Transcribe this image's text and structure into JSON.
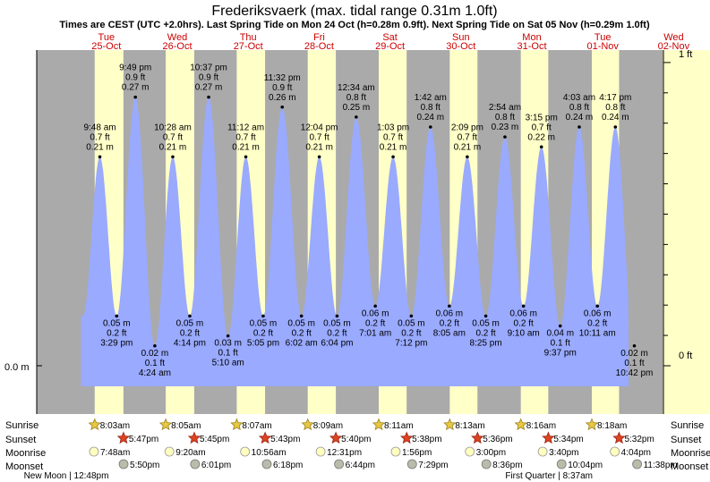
{
  "chart_data": {
    "type": "area",
    "title": "Frederiksvaerk (max. tidal range 0.31m 1.0ft)",
    "subtitle": "Times are CEST (UTC +2.0hrs). Last Spring Tide on Mon 24 Oct (h=0.28m 0.9ft). Next Spring Tide on Sat 05 Nov (h=0.29m 1.0ft)",
    "xlabel": "",
    "ylabel": "",
    "x_unit": "hours since 24-Oct 00:00",
    "ylim_m": [
      -0.017,
      0.326
    ],
    "xlim_h": [
      24,
      216
    ],
    "left_axis_label": "0.0 m",
    "right_axis_labels": [
      "1 ft",
      "0 ft"
    ],
    "colors": {
      "day": "#ffffc8",
      "night": "#aaaaaa",
      "tide": "#99aaff",
      "header_red": "#cc0000",
      "axis_band": "#ffffc8"
    },
    "days": [
      {
        "name": "Tue",
        "date": "25-Oct",
        "center_h": 36
      },
      {
        "name": "Wed",
        "date": "26-Oct",
        "center_h": 60
      },
      {
        "name": "Thu",
        "date": "27-Oct",
        "center_h": 84
      },
      {
        "name": "Fri",
        "date": "28-Oct",
        "center_h": 108
      },
      {
        "name": "Sat",
        "date": "29-Oct",
        "center_h": 132
      },
      {
        "name": "Sun",
        "date": "30-Oct",
        "center_h": 156
      },
      {
        "name": "Mon",
        "date": "31-Oct",
        "center_h": 180
      },
      {
        "name": "Tue",
        "date": "01-Nov",
        "center_h": 204
      },
      {
        "name": "Wed",
        "date": "02-Nov",
        "center_h": 228
      }
    ],
    "daylight": [
      {
        "sunrise_h": 32.05,
        "sunset_h": 41.78
      },
      {
        "sunrise_h": 56.08,
        "sunset_h": 65.75
      },
      {
        "sunrise_h": 80.12,
        "sunset_h": 89.72
      },
      {
        "sunrise_h": 104.15,
        "sunset_h": 113.67
      },
      {
        "sunrise_h": 128.18,
        "sunset_h": 137.63
      },
      {
        "sunrise_h": 152.22,
        "sunset_h": 161.6
      },
      {
        "sunrise_h": 176.27,
        "sunset_h": 185.57
      },
      {
        "sunrise_h": 200.3,
        "sunset_h": 209.53
      }
    ],
    "tides": [
      {
        "t_h": 33.8,
        "m": 0.21,
        "time": "9:48 am",
        "m_label": "0.21 m",
        "ft_label": "0.7 ft",
        "type": "high"
      },
      {
        "t_h": 39.48,
        "m": 0.05,
        "time": "3:29 pm",
        "m_label": "0.05 m",
        "ft_label": "0.2 ft",
        "type": "low"
      },
      {
        "t_h": 45.82,
        "m": 0.27,
        "time": "9:49 pm",
        "m_label": "0.27 m",
        "ft_label": "0.9 ft",
        "type": "high"
      },
      {
        "t_h": 52.4,
        "m": 0.02,
        "time": "4:24 am",
        "m_label": "0.02 m",
        "ft_label": "0.1 ft",
        "type": "low"
      },
      {
        "t_h": 58.47,
        "m": 0.21,
        "time": "10:28 am",
        "m_label": "0.21 m",
        "ft_label": "0.7 ft",
        "type": "high"
      },
      {
        "t_h": 64.23,
        "m": 0.05,
        "time": "4:14 pm",
        "m_label": "0.05 m",
        "ft_label": "0.2 ft",
        "type": "low"
      },
      {
        "t_h": 70.62,
        "m": 0.27,
        "time": "10:37 pm",
        "m_label": "0.27 m",
        "ft_label": "0.9 ft",
        "type": "high"
      },
      {
        "t_h": 77.17,
        "m": 0.03,
        "time": "5:10 am",
        "m_label": "0.03 m",
        "ft_label": "0.1 ft",
        "type": "low"
      },
      {
        "t_h": 83.2,
        "m": 0.21,
        "time": "11:12 am",
        "m_label": "0.21 m",
        "ft_label": "0.7 ft",
        "type": "high"
      },
      {
        "t_h": 89.08,
        "m": 0.05,
        "time": "5:05 pm",
        "m_label": "0.05 m",
        "ft_label": "0.2 ft",
        "type": "low"
      },
      {
        "t_h": 95.53,
        "m": 0.26,
        "time": "11:32 pm",
        "m_label": "0.26 m",
        "ft_label": "0.9 ft",
        "type": "high"
      },
      {
        "t_h": 102.03,
        "m": 0.05,
        "time": "6:02 am",
        "m_label": "0.05 m",
        "ft_label": "0.2 ft",
        "type": "low"
      },
      {
        "t_h": 108.07,
        "m": 0.21,
        "time": "12:04 pm",
        "m_label": "0.21 m",
        "ft_label": "0.7 ft",
        "type": "high"
      },
      {
        "t_h": 114.07,
        "m": 0.05,
        "time": "6:04 pm",
        "m_label": "0.05 m",
        "ft_label": "0.2 ft",
        "type": "low"
      },
      {
        "t_h": 120.57,
        "m": 0.25,
        "time": "12:34 am",
        "m_label": "0.25 m",
        "ft_label": "0.8 ft",
        "type": "high"
      },
      {
        "t_h": 127.02,
        "m": 0.06,
        "time": "7:01 am",
        "m_label": "0.06 m",
        "ft_label": "0.2 ft",
        "type": "low"
      },
      {
        "t_h": 133.05,
        "m": 0.21,
        "time": "1:03 pm",
        "m_label": "0.21 m",
        "ft_label": "0.7 ft",
        "type": "high"
      },
      {
        "t_h": 139.2,
        "m": 0.05,
        "time": "7:12 pm",
        "m_label": "0.05 m",
        "ft_label": "0.2 ft",
        "type": "low"
      },
      {
        "t_h": 145.7,
        "m": 0.24,
        "time": "1:42 am",
        "m_label": "0.24 m",
        "ft_label": "0.8 ft",
        "type": "high"
      },
      {
        "t_h": 152.08,
        "m": 0.06,
        "time": "8:05 am",
        "m_label": "0.06 m",
        "ft_label": "0.2 ft",
        "type": "low"
      },
      {
        "t_h": 158.15,
        "m": 0.21,
        "time": "2:09 pm",
        "m_label": "0.21 m",
        "ft_label": "0.7 ft",
        "type": "high"
      },
      {
        "t_h": 164.42,
        "m": 0.05,
        "time": "8:25 pm",
        "m_label": "0.05 m",
        "ft_label": "0.2 ft",
        "type": "low"
      },
      {
        "t_h": 170.9,
        "m": 0.23,
        "time": "2:54 am",
        "m_label": "0.23 m",
        "ft_label": "0.8 ft",
        "type": "high"
      },
      {
        "t_h": 177.17,
        "m": 0.06,
        "time": "9:10 am",
        "m_label": "0.06 m",
        "ft_label": "0.2 ft",
        "type": "low"
      },
      {
        "t_h": 183.25,
        "m": 0.22,
        "time": "3:15 pm",
        "m_label": "0.22 m",
        "ft_label": "0.7 ft",
        "type": "high"
      },
      {
        "t_h": 189.62,
        "m": 0.04,
        "time": "9:37 pm",
        "m_label": "0.04 m",
        "ft_label": "0.1 ft",
        "type": "low"
      },
      {
        "t_h": 196.05,
        "m": 0.24,
        "time": "4:03 am",
        "m_label": "0.24 m",
        "ft_label": "0.8 ft",
        "type": "high"
      },
      {
        "t_h": 202.18,
        "m": 0.06,
        "time": "10:11 am",
        "m_label": "0.06 m",
        "ft_label": "0.2 ft",
        "type": "low"
      },
      {
        "t_h": 208.28,
        "m": 0.24,
        "time": "4:17 pm",
        "m_label": "0.24 m",
        "ft_label": "0.8 ft",
        "type": "high"
      },
      {
        "t_h": 214.7,
        "m": 0.02,
        "time": "10:42 pm",
        "m_label": "0.02 m",
        "ft_label": "0.1 ft",
        "type": "low"
      }
    ],
    "row_labels": [
      "Sunrise",
      "Sunset",
      "Moonrise",
      "Moonset"
    ],
    "sunrise": [
      {
        "t_h": 32.05,
        "label": "8:03am"
      },
      {
        "t_h": 56.08,
        "label": "8:05am"
      },
      {
        "t_h": 80.12,
        "label": "8:07am"
      },
      {
        "t_h": 104.15,
        "label": "8:09am"
      },
      {
        "t_h": 128.18,
        "label": "8:11am"
      },
      {
        "t_h": 152.22,
        "label": "8:13am"
      },
      {
        "t_h": 176.27,
        "label": "8:16am"
      },
      {
        "t_h": 200.3,
        "label": "8:18am"
      }
    ],
    "sunset": [
      {
        "t_h": 41.78,
        "label": "5:47pm"
      },
      {
        "t_h": 65.75,
        "label": "5:45pm"
      },
      {
        "t_h": 89.72,
        "label": "5:43pm"
      },
      {
        "t_h": 113.67,
        "label": "5:40pm"
      },
      {
        "t_h": 137.63,
        "label": "5:38pm"
      },
      {
        "t_h": 161.6,
        "label": "5:36pm"
      },
      {
        "t_h": 185.57,
        "label": "5:34pm"
      },
      {
        "t_h": 209.53,
        "label": "5:32pm"
      }
    ],
    "moonrise": [
      {
        "t_h": 31.8,
        "label": "7:48am"
      },
      {
        "t_h": 57.33,
        "label": "9:20am"
      },
      {
        "t_h": 82.93,
        "label": "10:56am"
      },
      {
        "t_h": 108.52,
        "label": "12:31pm"
      },
      {
        "t_h": 133.93,
        "label": "1:56pm"
      },
      {
        "t_h": 159.0,
        "label": "3:00pm"
      },
      {
        "t_h": 183.67,
        "label": "3:40pm"
      },
      {
        "t_h": 208.07,
        "label": "4:04pm"
      }
    ],
    "moonset": [
      {
        "t_h": 41.83,
        "label": "5:50pm"
      },
      {
        "t_h": 66.02,
        "label": "6:01pm"
      },
      {
        "t_h": 90.3,
        "label": "6:18pm"
      },
      {
        "t_h": 114.73,
        "label": "6:44pm"
      },
      {
        "t_h": 139.48,
        "label": "7:29pm"
      },
      {
        "t_h": 164.6,
        "label": "8:36pm"
      },
      {
        "t_h": 190.07,
        "label": "10:04pm"
      },
      {
        "t_h": 215.63,
        "label": "11:38pm"
      }
    ],
    "moon_phases": [
      {
        "t_h": 36.8,
        "label": "New Moon | 12:48pm",
        "anchor": "end"
      },
      {
        "t_h": 200.6,
        "label": "First Quarter | 8:37am",
        "anchor": "end"
      }
    ]
  }
}
